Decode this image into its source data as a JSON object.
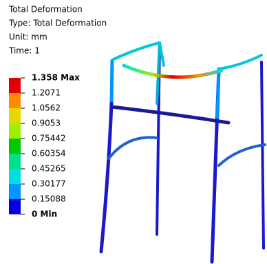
{
  "header": {
    "title": "Total Deformation",
    "type": "Type: Total Deformation",
    "unit": "Unit: mm",
    "time": "Time: 1"
  },
  "legend": {
    "labels": [
      "1.358 Max",
      "1.2071",
      "1.0562",
      "0.9053",
      "0.75442",
      "0.60354",
      "0.45265",
      "0.30177",
      "0.15088",
      "0 Min"
    ],
    "colors": [
      "#e00000",
      "#ff8c00",
      "#e8d800",
      "#9cf000",
      "#00c800",
      "#00e08c",
      "#00e0e0",
      "#0096ff",
      "#0000e0"
    ]
  }
}
